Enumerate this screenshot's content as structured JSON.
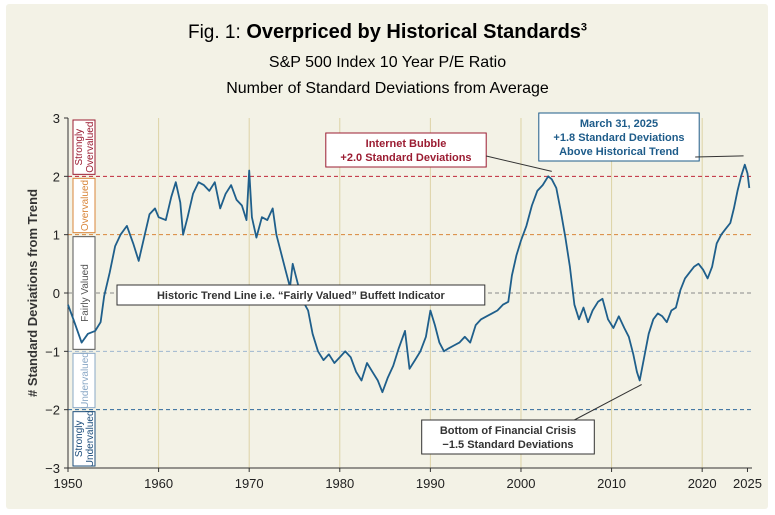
{
  "chart_data": {
    "type": "line",
    "title_prefix": "Fig. 1:",
    "title": "Overpriced by Historical Standards",
    "title_superscript": "3",
    "subtitle": "S&P 500 Index 10 Year P/E Ratio",
    "subtitle2": "Number of Standard Deviations from Average",
    "ylabel": "# Standard Deviations from Trend",
    "xlabel": "",
    "xlim": [
      1950,
      2025.5
    ],
    "ylim": [
      -3,
      3
    ],
    "x_ticks": [
      1950,
      1960,
      1970,
      1980,
      1990,
      2000,
      2010,
      2020,
      2025
    ],
    "y_ticks": [
      3,
      2,
      1,
      0,
      -1,
      -2,
      -3
    ],
    "y_tick_labels": [
      "3",
      "2",
      "1",
      "0",
      "−1",
      "−2",
      "−3"
    ],
    "reference_lines": [
      {
        "y": 2,
        "color": "#c0283a"
      },
      {
        "y": 1,
        "color": "#d9863a"
      },
      {
        "y": 0,
        "color": "#8a8a8a"
      },
      {
        "y": -1,
        "color": "#9fb7cf"
      },
      {
        "y": -2,
        "color": "#2f6a9c"
      }
    ],
    "bands": [
      {
        "label": "Strongly Overvalued",
        "from": 2,
        "to": 3,
        "color": "#9b1c32"
      },
      {
        "label": "Overvalued",
        "from": 1,
        "to": 2,
        "color": "#d9863a"
      },
      {
        "label": "Fairly Valued",
        "from": -1,
        "to": 1,
        "color": "#555555"
      },
      {
        "label": "Undervalued",
        "from": -2,
        "to": -1,
        "color": "#8aa8c6"
      },
      {
        "label": "Strongly Undervalued",
        "from": -3,
        "to": -2,
        "color": "#1e4f7c"
      }
    ],
    "series": [
      {
        "name": "S&P 500 10 Year P/E (std dev from trend)",
        "color": "#1f5f8b",
        "points": [
          [
            1950.0,
            -0.2
          ],
          [
            1950.6,
            -0.45
          ],
          [
            1951.5,
            -0.85
          ],
          [
            1952.2,
            -0.7
          ],
          [
            1953.0,
            -0.65
          ],
          [
            1953.6,
            -0.5
          ],
          [
            1954.0,
            -0.05
          ],
          [
            1954.6,
            0.35
          ],
          [
            1955.2,
            0.8
          ],
          [
            1955.8,
            1.0
          ],
          [
            1956.5,
            1.15
          ],
          [
            1957.2,
            0.85
          ],
          [
            1957.8,
            0.55
          ],
          [
            1958.4,
            0.95
          ],
          [
            1959.0,
            1.35
          ],
          [
            1959.6,
            1.45
          ],
          [
            1960.0,
            1.3
          ],
          [
            1960.8,
            1.25
          ],
          [
            1961.4,
            1.65
          ],
          [
            1961.9,
            1.9
          ],
          [
            1962.4,
            1.55
          ],
          [
            1962.7,
            1.0
          ],
          [
            1963.2,
            1.3
          ],
          [
            1963.8,
            1.7
          ],
          [
            1964.4,
            1.9
          ],
          [
            1965.0,
            1.85
          ],
          [
            1965.6,
            1.75
          ],
          [
            1966.2,
            1.9
          ],
          [
            1966.8,
            1.45
          ],
          [
            1967.4,
            1.7
          ],
          [
            1968.0,
            1.85
          ],
          [
            1968.6,
            1.6
          ],
          [
            1969.2,
            1.5
          ],
          [
            1969.7,
            1.25
          ],
          [
            1970.0,
            2.1
          ],
          [
            1970.3,
            1.3
          ],
          [
            1970.8,
            0.95
          ],
          [
            1971.4,
            1.3
          ],
          [
            1972.0,
            1.25
          ],
          [
            1972.6,
            1.45
          ],
          [
            1973.0,
            1.0
          ],
          [
            1973.5,
            0.7
          ],
          [
            1974.0,
            0.4
          ],
          [
            1974.5,
            0.1
          ],
          [
            1974.8,
            0.5
          ],
          [
            1975.3,
            0.2
          ],
          [
            1975.8,
            -0.1
          ],
          [
            1976.5,
            -0.3
          ],
          [
            1977.0,
            -0.7
          ],
          [
            1977.6,
            -1.0
          ],
          [
            1978.2,
            -1.15
          ],
          [
            1978.8,
            -1.05
          ],
          [
            1979.4,
            -1.2
          ],
          [
            1980.0,
            -1.1
          ],
          [
            1980.6,
            -1.0
          ],
          [
            1981.2,
            -1.1
          ],
          [
            1981.8,
            -1.35
          ],
          [
            1982.4,
            -1.5
          ],
          [
            1983.0,
            -1.2
          ],
          [
            1983.6,
            -1.35
          ],
          [
            1984.2,
            -1.5
          ],
          [
            1984.7,
            -1.7
          ],
          [
            1985.3,
            -1.45
          ],
          [
            1985.9,
            -1.25
          ],
          [
            1986.5,
            -0.95
          ],
          [
            1987.2,
            -0.65
          ],
          [
            1987.7,
            -1.3
          ],
          [
            1988.3,
            -1.15
          ],
          [
            1988.9,
            -1.0
          ],
          [
            1989.5,
            -0.75
          ],
          [
            1990.0,
            -0.3
          ],
          [
            1990.5,
            -0.55
          ],
          [
            1991.0,
            -0.85
          ],
          [
            1991.5,
            -1.0
          ],
          [
            1992.0,
            -0.95
          ],
          [
            1992.6,
            -0.9
          ],
          [
            1993.2,
            -0.85
          ],
          [
            1993.8,
            -0.75
          ],
          [
            1994.4,
            -0.85
          ],
          [
            1995.0,
            -0.55
          ],
          [
            1995.6,
            -0.45
          ],
          [
            1996.2,
            -0.4
          ],
          [
            1996.8,
            -0.35
          ],
          [
            1997.4,
            -0.3
          ],
          [
            1998.0,
            -0.2
          ],
          [
            1998.6,
            -0.15
          ],
          [
            1999.0,
            0.3
          ],
          [
            1999.5,
            0.65
          ],
          [
            2000.0,
            0.9
          ],
          [
            2000.6,
            1.15
          ],
          [
            2001.2,
            1.5
          ],
          [
            2001.8,
            1.75
          ],
          [
            2002.4,
            1.85
          ],
          [
            2003.0,
            2.0
          ],
          [
            2003.4,
            1.95
          ],
          [
            2003.9,
            1.8
          ],
          [
            2004.4,
            1.4
          ],
          [
            2004.9,
            0.95
          ],
          [
            2005.4,
            0.45
          ],
          [
            2005.9,
            -0.2
          ],
          [
            2006.4,
            -0.45
          ],
          [
            2006.9,
            -0.25
          ],
          [
            2007.4,
            -0.5
          ],
          [
            2007.9,
            -0.3
          ],
          [
            2008.5,
            -0.15
          ],
          [
            2009.0,
            -0.1
          ],
          [
            2009.6,
            -0.45
          ],
          [
            2010.2,
            -0.6
          ],
          [
            2010.8,
            -0.4
          ],
          [
            2011.4,
            -0.6
          ],
          [
            2011.9,
            -0.75
          ],
          [
            2012.4,
            -1.05
          ],
          [
            2012.8,
            -1.35
          ],
          [
            2013.1,
            -1.5
          ],
          [
            2013.6,
            -1.1
          ],
          [
            2014.1,
            -0.7
          ],
          [
            2014.6,
            -0.45
          ],
          [
            2015.1,
            -0.35
          ],
          [
            2015.6,
            -0.4
          ],
          [
            2016.1,
            -0.5
          ],
          [
            2016.6,
            -0.3
          ],
          [
            2017.1,
            -0.25
          ],
          [
            2017.6,
            0.05
          ],
          [
            2018.1,
            0.25
          ],
          [
            2018.6,
            0.35
          ],
          [
            2019.1,
            0.45
          ],
          [
            2019.6,
            0.5
          ],
          [
            2020.1,
            0.4
          ],
          [
            2020.6,
            0.25
          ],
          [
            2021.1,
            0.45
          ],
          [
            2021.6,
            0.85
          ],
          [
            2022.1,
            1.0
          ],
          [
            2022.6,
            1.1
          ],
          [
            2023.1,
            1.2
          ],
          [
            2023.5,
            1.45
          ],
          [
            2023.9,
            1.75
          ],
          [
            2024.3,
            2.0
          ],
          [
            2024.7,
            2.2
          ],
          [
            2025.0,
            2.05
          ],
          [
            2025.2,
            1.8
          ]
        ]
      }
    ],
    "annotations": [
      {
        "lines": [
          "Internet Bubble",
          "+2.0 Standard Deviations"
        ],
        "x": 2003.4,
        "y": 2.05,
        "color": "#9b1c32"
      },
      {
        "lines": [
          "March 31, 2025",
          "+1.8 Standard Deviations",
          "Above Historical Trend"
        ],
        "x": 2024.9,
        "y": 2.35,
        "color": "#1e5c8a"
      },
      {
        "lines": [
          "Historic Trend Line i.e. “Fairly Valued” Buffett Indicator"
        ],
        "x": 1955.5,
        "y": 0.0,
        "color": "#333333"
      },
      {
        "lines": [
          "Bottom of Financial Crisis",
          "−1.5 Standard Deviations"
        ],
        "x": 2013.1,
        "y": -1.5,
        "color": "#333333"
      }
    ]
  }
}
